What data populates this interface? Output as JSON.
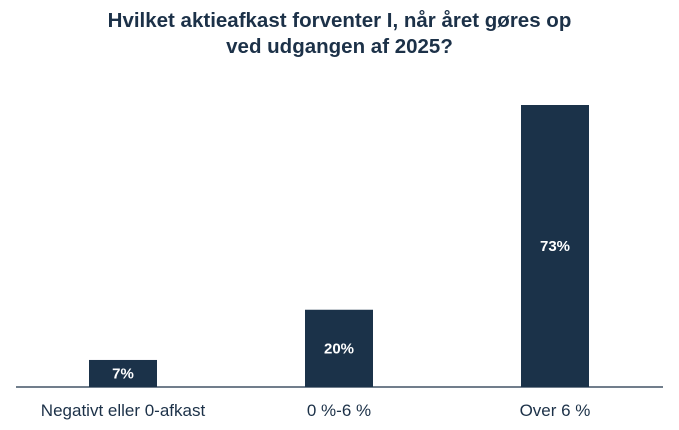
{
  "chart_data": {
    "type": "bar",
    "title_lines": [
      "Hvilket aktieafkast forventer I, når året gøres op",
      "ved udgangen af 2025?"
    ],
    "categories": [
      "Negativt eller 0-afkast",
      "0 %-6 %",
      "Over 6 %"
    ],
    "values": [
      7,
      20,
      73
    ],
    "value_labels": [
      "7%",
      "20%",
      "73%"
    ],
    "ylim": [
      0,
      73
    ],
    "grid": false,
    "legend": "none",
    "bar_color": "#1b3249",
    "axis_color": "#1c3148"
  }
}
